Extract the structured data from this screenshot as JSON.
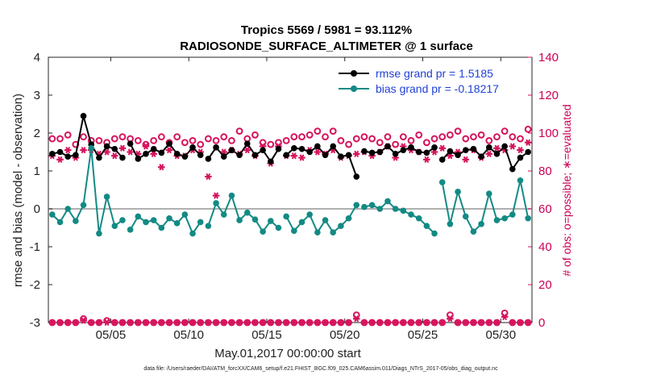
{
  "chart_data": {
    "type": "line",
    "title": "Tropics 5569 / 5981 = 93.112%",
    "subtitle": "RADIOSONDE_SURFACE_ALTIMETER @ 1 surface",
    "xlabel": "May.01,2017 00:00:00 start",
    "ylabel": "rmse and bias (model - observation)",
    "y2label": "# of obs: o=possible; ∗=evaluated",
    "footer": "data file: /Users/raeder/DAI/ATM_forcXX/CAM6_setup/f.e21.FHIST_BGC.f09_025.CAM6assim.011/Diags_NTrS_2017-05/obs_diag_output.nc",
    "xlim": [
      1,
      32
    ],
    "ylim": [
      -3,
      4
    ],
    "y2lim": [
      0,
      140
    ],
    "x_tick_values": [
      5,
      10,
      15,
      20,
      25,
      30
    ],
    "x_tick_labels": [
      "05/05",
      "05/10",
      "05/15",
      "05/20",
      "05/25",
      "05/30"
    ],
    "y_tick_labels": [
      "-3",
      "-2",
      "-1",
      "0",
      "1",
      "2",
      "3",
      "4"
    ],
    "y2_tick_labels": [
      "0",
      "20",
      "40",
      "60",
      "80",
      "100",
      "120",
      "140"
    ],
    "legend_location": "top-right",
    "colors": {
      "rmse": "#000000",
      "bias": "#138a84",
      "obs": "#d6125c",
      "zero_line": "#b0b0b0",
      "legend_text": "#1f3fd6"
    },
    "series": [
      {
        "name": "rmse grand pr = 1.5185",
        "axis": "left",
        "style": "line-marker",
        "x": [
          1.25,
          1.75,
          2.25,
          2.75,
          3.25,
          3.75,
          4.25,
          4.75,
          5.25,
          5.75,
          6.25,
          6.75,
          7.25,
          7.75,
          8.25,
          8.75,
          9.25,
          9.75,
          10.25,
          10.75,
          11.25,
          11.75,
          12.25,
          12.75,
          13.25,
          13.75,
          14.25,
          14.75,
          15.25,
          15.75,
          16.25,
          16.75,
          17.25,
          17.75,
          18.25,
          18.75,
          19.25,
          19.75,
          20.25,
          20.75,
          21.25,
          21.75,
          22.25,
          22.75,
          23.25,
          23.75,
          24.25,
          24.75,
          25.25,
          25.75,
          26.25,
          26.75,
          27.25,
          27.75,
          28.25,
          28.75,
          29.25,
          29.75,
          30.25,
          30.75,
          31.25,
          31.75
        ],
        "values": [
          1.45,
          1.5,
          1.38,
          1.42,
          2.45,
          1.7,
          1.35,
          1.65,
          1.58,
          1.35,
          1.72,
          1.32,
          1.45,
          1.58,
          1.48,
          1.72,
          1.45,
          1.38,
          1.62,
          1.42,
          1.32,
          1.62,
          1.38,
          1.55,
          1.42,
          1.72,
          1.42,
          1.55,
          1.25,
          1.58,
          1.42,
          1.6,
          1.58,
          1.5,
          1.65,
          1.42,
          1.65,
          1.38,
          1.42,
          0.85,
          1.52,
          1.48,
          1.5,
          1.65,
          1.45,
          1.55,
          1.62,
          1.5,
          1.48,
          1.62,
          1.3,
          1.52,
          1.42,
          1.55,
          1.58,
          1.38,
          1.62,
          1.45,
          1.65,
          1.05,
          1.35,
          1.5
        ],
        "gaps_after_index": [
          9,
          19,
          29,
          39,
          49
        ]
      },
      {
        "name": "bias grand pr = -0.18217",
        "axis": "left",
        "style": "line-marker",
        "x": [
          1.25,
          1.75,
          2.25,
          2.75,
          3.25,
          3.75,
          4.25,
          4.75,
          5.25,
          5.75,
          6.25,
          6.75,
          7.25,
          7.75,
          8.25,
          8.75,
          9.25,
          9.75,
          10.25,
          10.75,
          11.25,
          11.75,
          12.25,
          12.75,
          13.25,
          13.75,
          14.25,
          14.75,
          15.25,
          15.75,
          16.25,
          16.75,
          17.25,
          17.75,
          18.25,
          18.75,
          19.25,
          19.75,
          20.25,
          20.75,
          21.25,
          21.75,
          22.25,
          22.75,
          23.25,
          23.75,
          24.25,
          24.75,
          25.25,
          25.75,
          26.25,
          26.75,
          27.25,
          27.75,
          28.25,
          28.75,
          29.25,
          29.75,
          30.25,
          30.75,
          31.25,
          31.75
        ],
        "values": [
          -0.15,
          -0.35,
          0.0,
          -0.32,
          0.1,
          1.6,
          -0.65,
          0.32,
          -0.45,
          -0.3,
          -0.55,
          -0.2,
          -0.35,
          -0.3,
          -0.5,
          -0.25,
          -0.38,
          -0.15,
          -0.65,
          -0.35,
          -0.45,
          0.15,
          -0.15,
          0.35,
          -0.3,
          -0.1,
          -0.28,
          -0.6,
          -0.32,
          -0.5,
          -0.2,
          -0.58,
          -0.35,
          -0.15,
          -0.62,
          -0.3,
          -0.62,
          -0.45,
          -0.25,
          0.1,
          0.05,
          0.1,
          0.0,
          0.2,
          0.0,
          -0.05,
          -0.15,
          -0.25,
          -0.45,
          -0.65,
          0.7,
          -0.4,
          0.45,
          -0.2,
          -0.6,
          -0.4,
          0.4,
          -0.3,
          -0.25,
          -0.15,
          0.75,
          -0.25
        ],
        "gaps_after_index": [
          9,
          19,
          29,
          39,
          49
        ]
      },
      {
        "name": "# of obs possible",
        "axis": "right",
        "style": "open-circle",
        "x": [
          1.25,
          1.75,
          2.25,
          2.75,
          3.25,
          3.75,
          4.25,
          4.75,
          5.25,
          5.75,
          6.25,
          6.75,
          7.25,
          7.75,
          8.25,
          8.75,
          9.25,
          9.75,
          10.25,
          10.75,
          11.25,
          11.75,
          12.25,
          12.75,
          13.25,
          13.75,
          14.25,
          14.75,
          15.25,
          15.75,
          16.25,
          16.75,
          17.25,
          17.75,
          18.25,
          18.75,
          19.25,
          19.75,
          20.25,
          20.75,
          21.25,
          21.75,
          22.25,
          22.75,
          23.25,
          23.75,
          24.25,
          24.75,
          25.25,
          25.75,
          26.25,
          26.75,
          27.25,
          27.75,
          28.25,
          28.75,
          29.25,
          29.75,
          30.25,
          30.75,
          31.25,
          31.75
        ],
        "values": [
          97,
          97,
          99,
          94,
          98,
          96,
          96,
          95,
          97,
          98,
          97,
          96,
          94,
          96,
          98,
          95,
          98,
          95,
          96,
          94,
          97,
          96,
          98,
          96,
          101,
          97,
          99,
          95,
          94,
          95,
          96,
          98,
          98,
          99,
          101,
          98,
          101,
          96,
          94,
          97,
          98,
          97,
          95,
          98,
          94,
          98,
          96,
          99,
          95,
          97,
          98,
          99,
          101,
          97,
          98,
          99,
          96,
          98,
          101,
          98,
          97,
          102
        ]
      },
      {
        "name": "# of obs evaluated",
        "axis": "right",
        "style": "asterisk",
        "x": [
          1.25,
          1.75,
          2.25,
          2.75,
          3.25,
          3.75,
          4.25,
          4.75,
          5.25,
          5.75,
          6.25,
          6.75,
          7.25,
          7.75,
          8.25,
          8.75,
          9.25,
          9.75,
          10.25,
          10.75,
          11.25,
          11.75,
          12.25,
          12.75,
          13.25,
          13.75,
          14.25,
          14.75,
          15.25,
          15.75,
          16.25,
          16.75,
          17.25,
          17.75,
          18.25,
          18.75,
          19.25,
          19.75,
          20.25,
          20.75,
          21.25,
          21.75,
          22.25,
          22.75,
          23.25,
          23.75,
          24.25,
          24.75,
          25.25,
          25.75,
          26.25,
          26.75,
          27.25,
          27.75,
          28.25,
          28.75,
          29.25,
          29.75,
          30.25,
          30.75,
          31.25,
          31.75
        ],
        "values": [
          88,
          86,
          91,
          87,
          91,
          91,
          89,
          90,
          88,
          92,
          90,
          89,
          93,
          89,
          82,
          91,
          88,
          88,
          91,
          90,
          77,
          67,
          90,
          91,
          89,
          91,
          88,
          93,
          84,
          93,
          88,
          88,
          87,
          91,
          90,
          89,
          91,
          87,
          88,
          89,
          90,
          88,
          90,
          93,
          87,
          93,
          91,
          90,
          86,
          90,
          92,
          88,
          90,
          86,
          91,
          87,
          89,
          92,
          91,
          93,
          91,
          95
        ]
      },
      {
        "name": "# of obs possible (near zero)",
        "axis": "right",
        "style": "open-circle",
        "x": [
          1.25,
          1.75,
          2.25,
          2.75,
          3.25,
          3.75,
          4.25,
          4.75,
          5.25,
          5.75,
          6.25,
          6.75,
          7.25,
          7.75,
          8.25,
          8.75,
          9.25,
          9.75,
          10.25,
          10.75,
          11.25,
          11.75,
          12.25,
          12.75,
          13.25,
          13.75,
          14.25,
          14.75,
          15.25,
          15.75,
          16.25,
          16.75,
          17.25,
          17.75,
          18.25,
          18.75,
          19.25,
          19.75,
          20.25,
          20.75,
          21.25,
          21.75,
          22.25,
          22.75,
          23.25,
          23.75,
          24.25,
          24.75,
          25.25,
          25.75,
          26.25,
          26.75,
          27.25,
          27.75,
          28.25,
          28.75,
          29.25,
          29.75,
          30.25,
          30.75,
          31.25,
          31.75
        ],
        "values": [
          0,
          0,
          0,
          0,
          2,
          0,
          0,
          1,
          0,
          0,
          0,
          0,
          0,
          0,
          0,
          0,
          0,
          0,
          0,
          0,
          0,
          0,
          0,
          0,
          0,
          0,
          0,
          0,
          0,
          0,
          0,
          0,
          0,
          0,
          0,
          0,
          0,
          0,
          0,
          4,
          0,
          0,
          0,
          0,
          0,
          0,
          0,
          0,
          0,
          0,
          0,
          4,
          0,
          0,
          0,
          0,
          0,
          0,
          5,
          0,
          0,
          0
        ]
      },
      {
        "name": "# of obs evaluated (near zero)",
        "axis": "right",
        "style": "asterisk",
        "x": [
          1.25,
          1.75,
          2.25,
          2.75,
          3.25,
          3.75,
          4.25,
          4.75,
          5.25,
          5.75,
          6.25,
          6.75,
          7.25,
          7.75,
          8.25,
          8.75,
          9.25,
          9.75,
          10.25,
          10.75,
          11.25,
          11.75,
          12.25,
          12.75,
          13.25,
          13.75,
          14.25,
          14.75,
          15.25,
          15.75,
          16.25,
          16.75,
          17.25,
          17.75,
          18.25,
          18.75,
          19.25,
          19.75,
          20.25,
          20.75,
          21.25,
          21.75,
          22.25,
          22.75,
          23.25,
          23.75,
          24.25,
          24.75,
          25.25,
          25.75,
          26.25,
          26.75,
          27.25,
          27.75,
          28.25,
          28.75,
          29.25,
          29.75,
          30.25,
          30.75,
          31.25,
          31.75
        ],
        "values": [
          0,
          0,
          0,
          0,
          1,
          0,
          0,
          0,
          0,
          0,
          0,
          0,
          0,
          0,
          0,
          0,
          0,
          0,
          0,
          0,
          0,
          0,
          0,
          0,
          0,
          0,
          0,
          0,
          0,
          0,
          0,
          0,
          0,
          0,
          0,
          0,
          0,
          0,
          0,
          2,
          0,
          0,
          0,
          0,
          0,
          0,
          0,
          0,
          0,
          0,
          0,
          2,
          0,
          0,
          0,
          0,
          0,
          0,
          3,
          0,
          0,
          0
        ]
      }
    ]
  }
}
